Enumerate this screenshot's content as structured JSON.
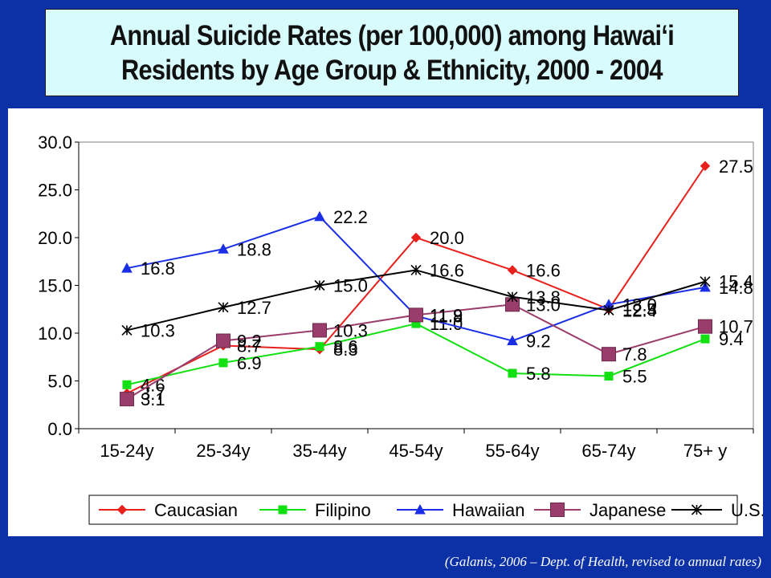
{
  "chart_data": {
    "type": "line",
    "title_lines": [
      "Annual Suicide Rates (per 100,000) among Hawai‘i",
      "Residents by Age Group & Ethnicity, 2000 - 2004"
    ],
    "xlabel": "",
    "ylabel": "",
    "categories": [
      "15-24y",
      "25-34y",
      "35-44y",
      "45-54y",
      "55-64y",
      "65-74y",
      "75+ y"
    ],
    "ylim": [
      0,
      30
    ],
    "yticks": [
      0,
      5,
      10,
      15,
      20,
      25,
      30
    ],
    "ytick_labels": [
      "0.0",
      "5.0",
      "10.0",
      "15.0",
      "20.0",
      "25.0",
      "30.0"
    ],
    "grid": false,
    "legend_position": "bottom",
    "series": [
      {
        "name": "Caucasian",
        "color": "#e8201c",
        "marker": "diamond",
        "values": [
          3.7,
          8.7,
          8.3,
          20.0,
          16.6,
          12.5,
          27.5
        ],
        "labels": [
          "3.7",
          "8.7",
          "8.3",
          "20.0",
          "16.6",
          "12.5",
          "27.5"
        ]
      },
      {
        "name": "Filipino",
        "color": "#12e012",
        "marker": "square",
        "values": [
          4.6,
          6.9,
          8.6,
          11.0,
          5.8,
          5.5,
          9.4
        ],
        "labels": [
          "4.6",
          "6.9",
          "8.6",
          "11.0",
          "5.8",
          "5.5",
          "9.4"
        ]
      },
      {
        "name": "Hawaiian",
        "color": "#1a2ee6",
        "marker": "triangle",
        "values": [
          16.8,
          18.8,
          22.2,
          11.8,
          9.2,
          13.0,
          14.8
        ],
        "labels": [
          "16.8",
          "18.8",
          "22.2",
          "11.8",
          "9.2",
          "13.0",
          "14.8"
        ]
      },
      {
        "name": "Japanese",
        "color": "#9a3c6c",
        "marker": "bigsquare",
        "values": [
          3.1,
          9.2,
          10.3,
          11.9,
          13.0,
          7.8,
          10.7
        ],
        "labels": [
          "3.1",
          "9.2",
          "10.3",
          "11.9",
          "13.0",
          "7.8",
          "10.7"
        ]
      },
      {
        "name": "U.S.",
        "color": "#000000",
        "marker": "star",
        "values": [
          10.3,
          12.7,
          15.0,
          16.6,
          13.8,
          12.4,
          15.4
        ],
        "labels": [
          "10.3",
          "12.7",
          "15.0",
          "16.6",
          "13.8",
          "12.4",
          "15.4"
        ]
      }
    ]
  },
  "source_note": "(Galanis, 2006 – Dept. of Health, revised to annual rates)"
}
